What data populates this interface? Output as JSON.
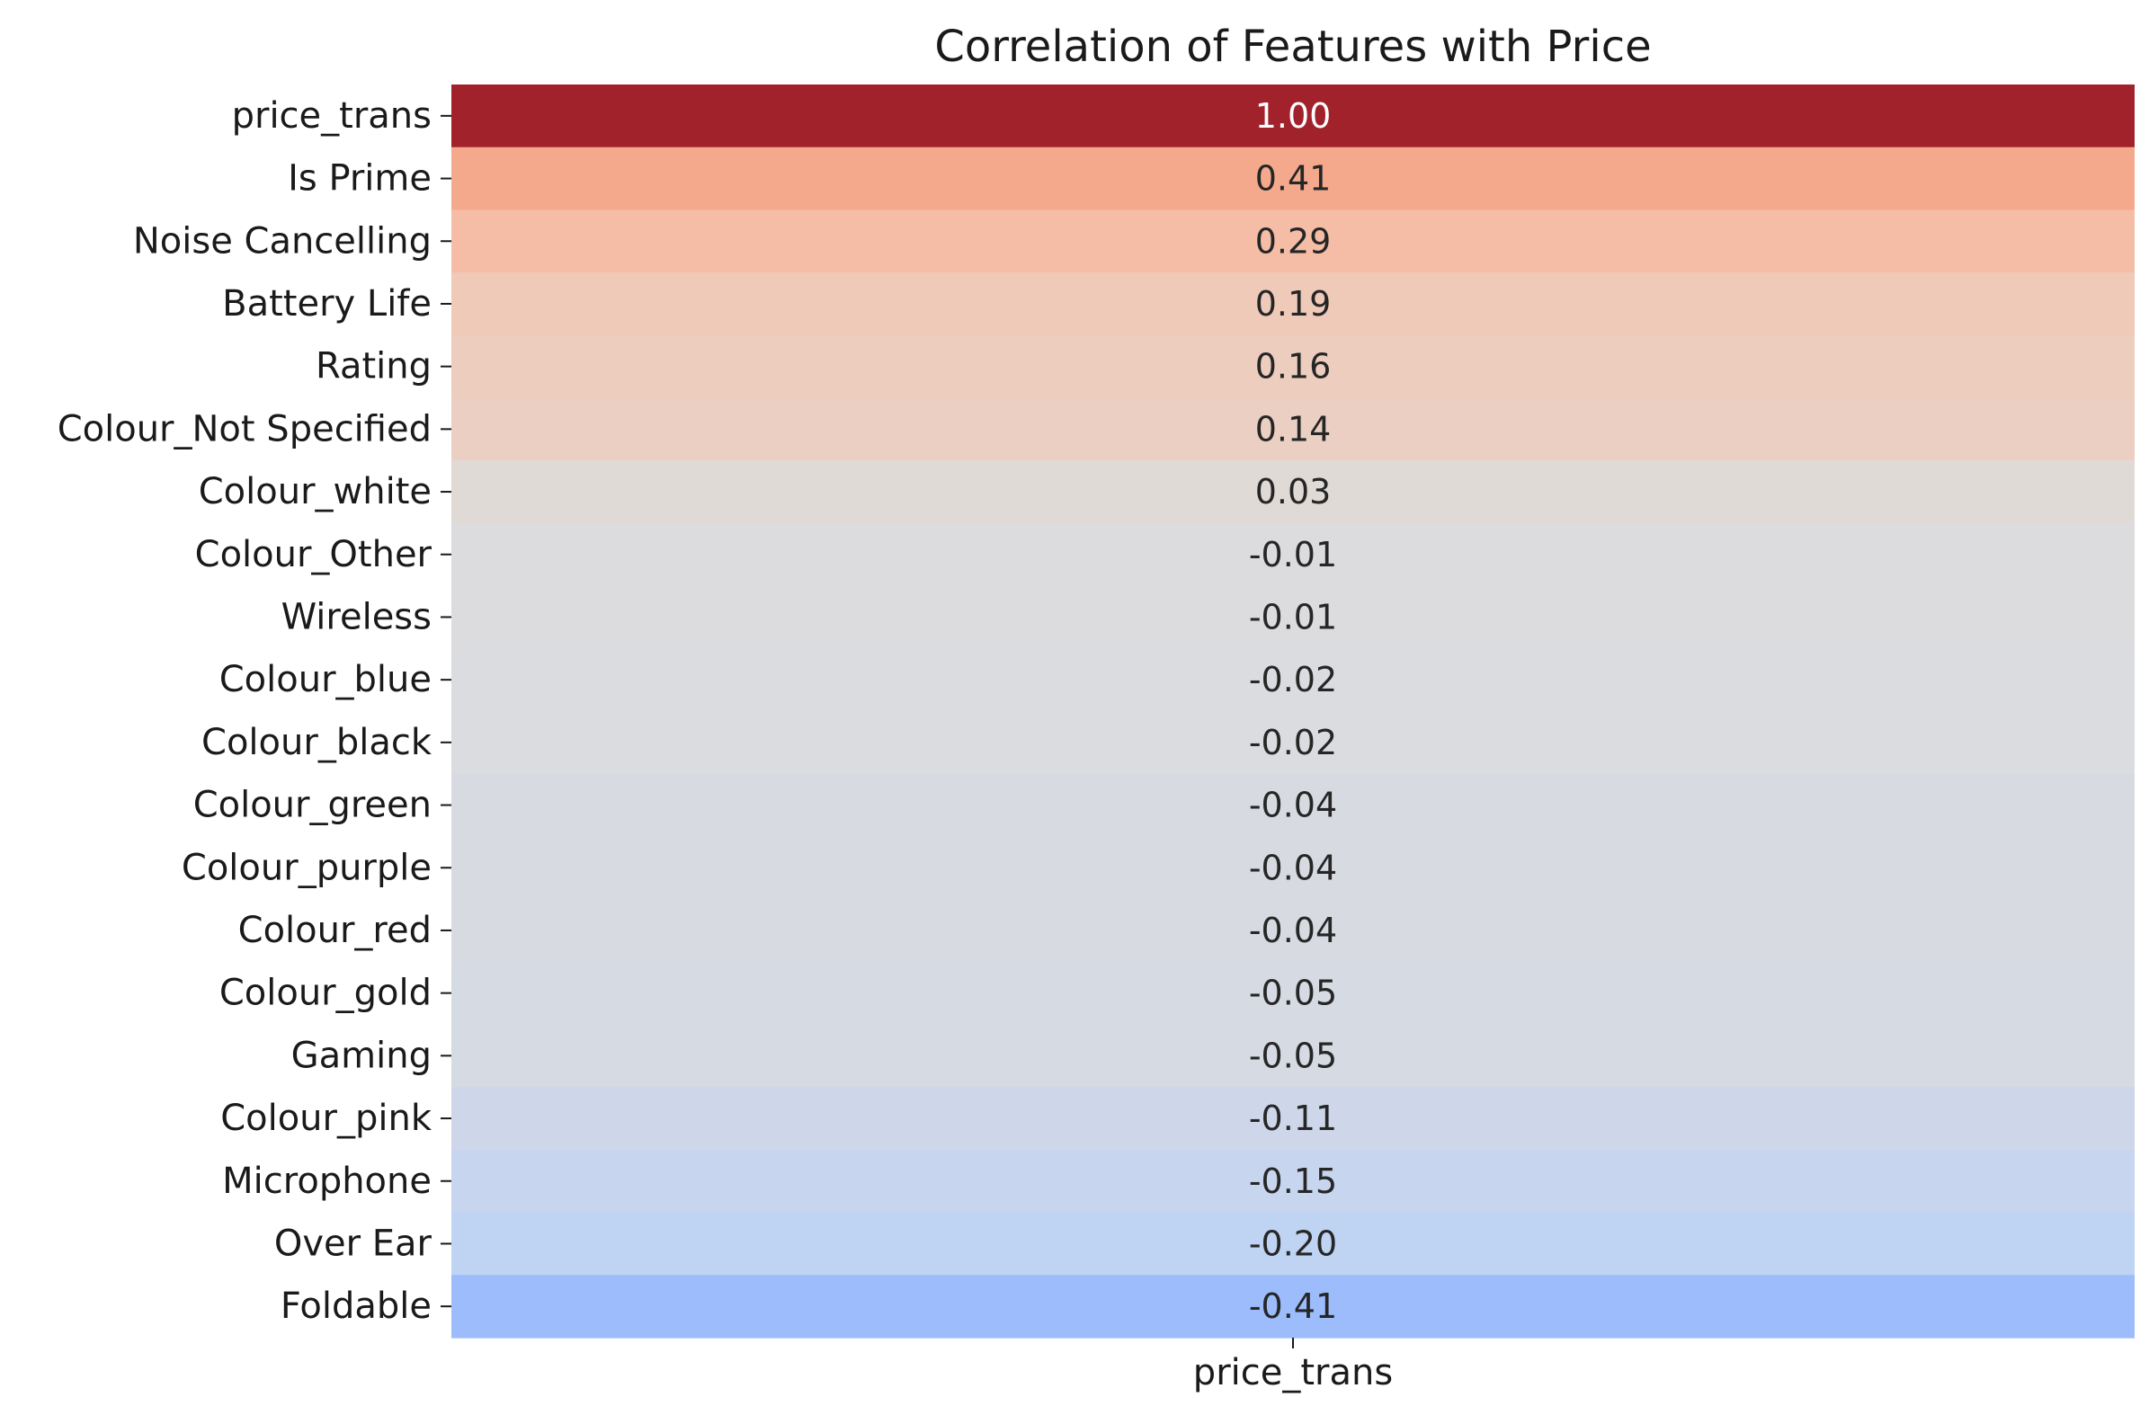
{
  "chart_data": {
    "type": "heatmap",
    "title": "Correlation of Features with Price",
    "columns": [
      "price_trans"
    ],
    "rows": [
      "price_trans",
      "Is Prime",
      "Noise Cancelling",
      "Battery Life",
      "Rating",
      "Colour_Not Specified",
      "Colour_white",
      "Colour_Other",
      "Wireless",
      "Colour_blue",
      "Colour_black",
      "Colour_green",
      "Colour_purple",
      "Colour_red",
      "Colour_gold",
      "Gaming",
      "Colour_pink",
      "Microphone",
      "Over Ear",
      "Foldable"
    ],
    "values": [
      1.0,
      0.41,
      0.29,
      0.19,
      0.16,
      0.14,
      0.03,
      -0.01,
      -0.01,
      -0.02,
      -0.02,
      -0.04,
      -0.04,
      -0.04,
      -0.05,
      -0.05,
      -0.11,
      -0.15,
      -0.2,
      -0.41
    ],
    "value_labels": [
      "1.00",
      "0.41",
      "0.29",
      "0.19",
      "0.16",
      "0.14",
      "0.03",
      "-0.01",
      "-0.01",
      "-0.02",
      "-0.02",
      "-0.04",
      "-0.04",
      "-0.04",
      "-0.05",
      "-0.05",
      "-0.11",
      "-0.15",
      "-0.20",
      "-0.41"
    ],
    "colormap": "coolwarm",
    "colorbar": false,
    "colors": {
      "low": "#a1befe",
      "mid": "#dddcdc",
      "high": "#a2222c",
      "text_dark": "#262626",
      "text_light": "#ffffff"
    }
  }
}
